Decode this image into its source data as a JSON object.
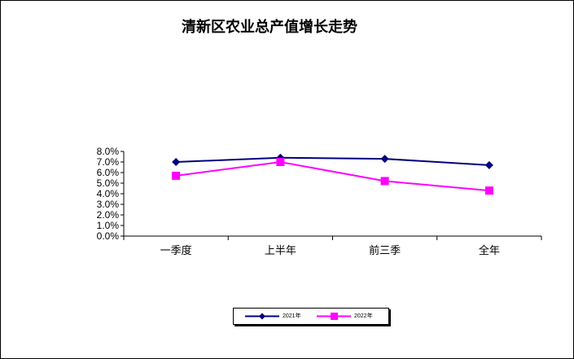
{
  "chart_data": {
    "type": "line",
    "title": "清新区农业总产值增长走势",
    "categories": [
      "一季度",
      "上半年",
      "前三季",
      "全年"
    ],
    "y_ticks": [
      "0.0%",
      "1.0%",
      "2.0%",
      "3.0%",
      "4.0%",
      "5.0%",
      "6.0%",
      "7.0%",
      "8.0%"
    ],
    "ylim": [
      0,
      8
    ],
    "grid": false,
    "legend_position": "bottom",
    "series": [
      {
        "name": "2021年",
        "values": [
          7.0,
          7.4,
          7.3,
          6.7
        ],
        "color": "#000080",
        "marker": "diamond"
      },
      {
        "name": "2022年",
        "values": [
          5.7,
          7.0,
          5.2,
          4.3
        ],
        "color": "#FF00FF",
        "marker": "square"
      }
    ]
  }
}
